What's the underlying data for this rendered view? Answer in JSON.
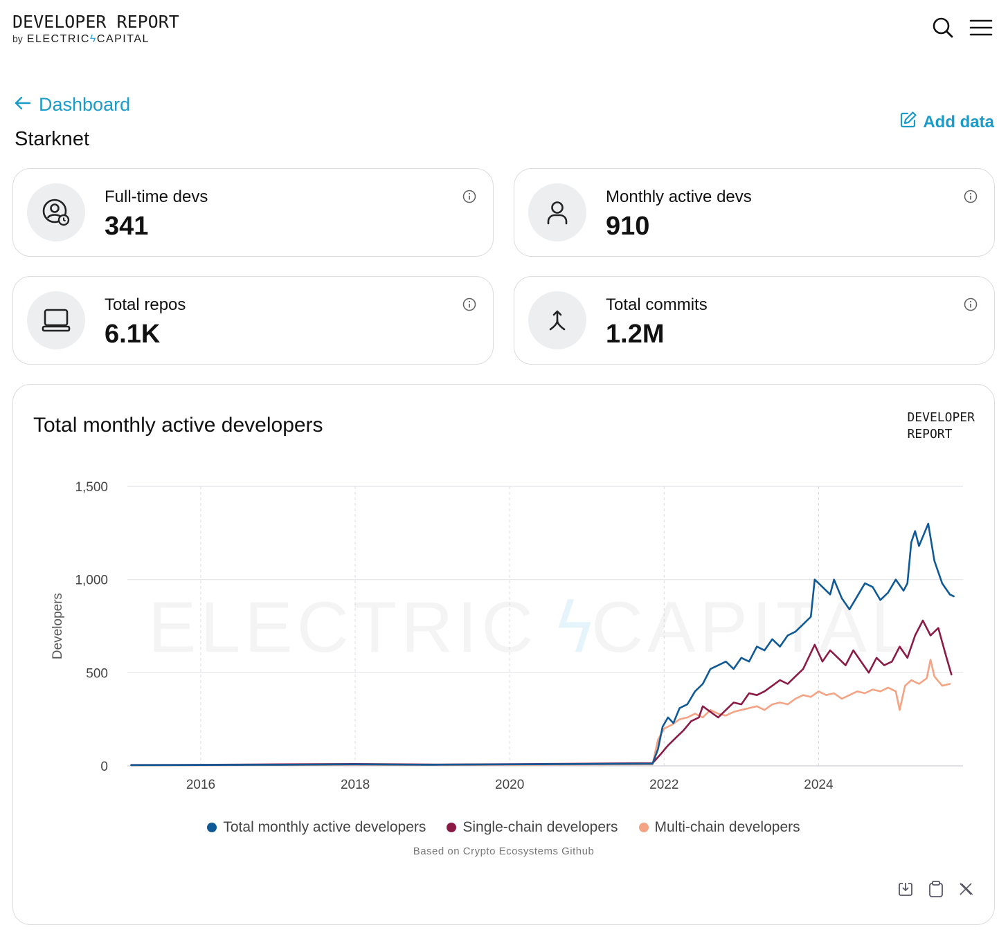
{
  "header": {
    "logo_title": "DEVELOPER REPORT",
    "logo_by": "by",
    "logo_brand_left": "ELECTRIC",
    "logo_brand_right": "CAPITAL"
  },
  "nav": {
    "back_label": "Dashboard",
    "page_title": "Starknet",
    "add_data_label": "Add data"
  },
  "stats": [
    {
      "label": "Full-time devs",
      "value": "341",
      "icon": "user-clock-icon"
    },
    {
      "label": "Monthly active devs",
      "value": "910",
      "icon": "user-icon"
    },
    {
      "label": "Total repos",
      "value": "6.1K",
      "icon": "laptop-icon"
    },
    {
      "label": "Total commits",
      "value": "1.2M",
      "icon": "merge-icon"
    }
  ],
  "chart_section": {
    "title": "Total monthly active developers",
    "brand_line1": "DEVELOPER",
    "brand_line2": "REPORT",
    "watermark_left": "ELECTRIC",
    "watermark_right": "CAPITAL",
    "source": "Based on Crypto Ecosystems Github"
  },
  "colors": {
    "accent": "#1a9bc9",
    "total": "#0f5a96",
    "single": "#8b1a45",
    "multi": "#f4a384"
  },
  "chart_data": {
    "type": "line",
    "ylabel": "Developers",
    "ylim": [
      0,
      1500
    ],
    "yticks": [
      0,
      500,
      1000,
      1500
    ],
    "ytick_labels": [
      "0",
      "500",
      "1,000",
      "1,500"
    ],
    "xlim": [
      2015.05,
      2025.87
    ],
    "xticks": [
      2016,
      2018,
      2020,
      2022,
      2024
    ],
    "xtick_labels": [
      "2016",
      "2018",
      "2020",
      "2022",
      "2024"
    ],
    "grid": true,
    "legend_position": "bottom",
    "series": [
      {
        "name": "Total monthly active developers",
        "color": "#0f5a96",
        "points": [
          [
            2015.1,
            4
          ],
          [
            2016,
            5
          ],
          [
            2017,
            6
          ],
          [
            2018,
            8
          ],
          [
            2019,
            6
          ],
          [
            2020,
            8
          ],
          [
            2021,
            10
          ],
          [
            2021.85,
            12
          ],
          [
            2021.92,
            90
          ],
          [
            2021.98,
            210
          ],
          [
            2022.05,
            260
          ],
          [
            2022.12,
            230
          ],
          [
            2022.2,
            310
          ],
          [
            2022.3,
            330
          ],
          [
            2022.4,
            400
          ],
          [
            2022.5,
            440
          ],
          [
            2022.6,
            520
          ],
          [
            2022.7,
            540
          ],
          [
            2022.8,
            560
          ],
          [
            2022.9,
            520
          ],
          [
            2023,
            580
          ],
          [
            2023.1,
            560
          ],
          [
            2023.2,
            640
          ],
          [
            2023.3,
            620
          ],
          [
            2023.4,
            680
          ],
          [
            2023.5,
            640
          ],
          [
            2023.6,
            700
          ],
          [
            2023.7,
            720
          ],
          [
            2023.8,
            760
          ],
          [
            2023.9,
            800
          ],
          [
            2023.95,
            1000
          ],
          [
            2024.05,
            960
          ],
          [
            2024.15,
            920
          ],
          [
            2024.2,
            1000
          ],
          [
            2024.3,
            900
          ],
          [
            2024.4,
            840
          ],
          [
            2024.5,
            910
          ],
          [
            2024.6,
            980
          ],
          [
            2024.7,
            960
          ],
          [
            2024.8,
            890
          ],
          [
            2024.9,
            930
          ],
          [
            2025,
            1000
          ],
          [
            2025.1,
            940
          ],
          [
            2025.15,
            980
          ],
          [
            2025.2,
            1200
          ],
          [
            2025.25,
            1260
          ],
          [
            2025.3,
            1180
          ],
          [
            2025.35,
            1230
          ],
          [
            2025.42,
            1300
          ],
          [
            2025.5,
            1100
          ],
          [
            2025.6,
            980
          ],
          [
            2025.7,
            920
          ],
          [
            2025.75,
            910
          ]
        ]
      },
      {
        "name": "Single-chain developers",
        "color": "#8b1a45",
        "points": [
          [
            2015.1,
            5
          ],
          [
            2016,
            6
          ],
          [
            2017,
            8
          ],
          [
            2018,
            10
          ],
          [
            2019,
            7
          ],
          [
            2020,
            9
          ],
          [
            2021,
            12
          ],
          [
            2021.85,
            15
          ],
          [
            2021.95,
            60
          ],
          [
            2022.05,
            110
          ],
          [
            2022.15,
            150
          ],
          [
            2022.25,
            190
          ],
          [
            2022.35,
            240
          ],
          [
            2022.45,
            260
          ],
          [
            2022.5,
            320
          ],
          [
            2022.6,
            290
          ],
          [
            2022.7,
            260
          ],
          [
            2022.8,
            300
          ],
          [
            2022.9,
            340
          ],
          [
            2023,
            330
          ],
          [
            2023.1,
            390
          ],
          [
            2023.2,
            380
          ],
          [
            2023.3,
            400
          ],
          [
            2023.4,
            430
          ],
          [
            2023.5,
            460
          ],
          [
            2023.6,
            440
          ],
          [
            2023.7,
            480
          ],
          [
            2023.8,
            520
          ],
          [
            2023.95,
            650
          ],
          [
            2024.05,
            560
          ],
          [
            2024.15,
            620
          ],
          [
            2024.25,
            580
          ],
          [
            2024.35,
            540
          ],
          [
            2024.45,
            620
          ],
          [
            2024.55,
            560
          ],
          [
            2024.65,
            500
          ],
          [
            2024.75,
            580
          ],
          [
            2024.85,
            540
          ],
          [
            2024.95,
            560
          ],
          [
            2025.05,
            640
          ],
          [
            2025.15,
            580
          ],
          [
            2025.25,
            700
          ],
          [
            2025.35,
            780
          ],
          [
            2025.45,
            700
          ],
          [
            2025.55,
            740
          ],
          [
            2025.65,
            590
          ],
          [
            2025.72,
            490
          ]
        ]
      },
      {
        "name": "Multi-chain developers",
        "color": "#f4a384",
        "points": [
          [
            2015.1,
            3
          ],
          [
            2016,
            4
          ],
          [
            2017,
            5
          ],
          [
            2018,
            6
          ],
          [
            2019,
            5
          ],
          [
            2020,
            6
          ],
          [
            2021,
            7
          ],
          [
            2021.85,
            8
          ],
          [
            2021.92,
            140
          ],
          [
            2022,
            200
          ],
          [
            2022.1,
            220
          ],
          [
            2022.2,
            250
          ],
          [
            2022.3,
            260
          ],
          [
            2022.4,
            280
          ],
          [
            2022.5,
            260
          ],
          [
            2022.6,
            300
          ],
          [
            2022.7,
            280
          ],
          [
            2022.8,
            270
          ],
          [
            2022.9,
            290
          ],
          [
            2023,
            300
          ],
          [
            2023.1,
            310
          ],
          [
            2023.2,
            320
          ],
          [
            2023.3,
            300
          ],
          [
            2023.4,
            330
          ],
          [
            2023.5,
            340
          ],
          [
            2023.6,
            330
          ],
          [
            2023.7,
            360
          ],
          [
            2023.8,
            380
          ],
          [
            2023.9,
            370
          ],
          [
            2024,
            400
          ],
          [
            2024.1,
            380
          ],
          [
            2024.2,
            390
          ],
          [
            2024.3,
            360
          ],
          [
            2024.4,
            380
          ],
          [
            2024.5,
            400
          ],
          [
            2024.6,
            390
          ],
          [
            2024.7,
            410
          ],
          [
            2024.8,
            400
          ],
          [
            2024.9,
            420
          ],
          [
            2025,
            400
          ],
          [
            2025.05,
            300
          ],
          [
            2025.12,
            430
          ],
          [
            2025.2,
            460
          ],
          [
            2025.3,
            440
          ],
          [
            2025.4,
            470
          ],
          [
            2025.45,
            570
          ],
          [
            2025.5,
            480
          ],
          [
            2025.6,
            430
          ],
          [
            2025.7,
            440
          ]
        ]
      }
    ]
  }
}
